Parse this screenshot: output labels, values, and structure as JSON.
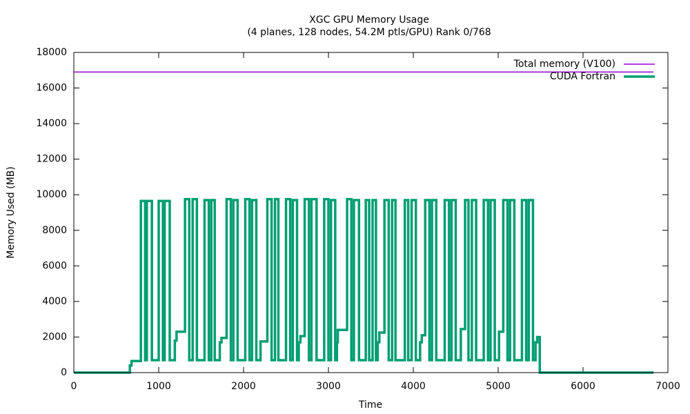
{
  "chart_data": {
    "type": "line",
    "title": "XGC GPU Memory Usage",
    "subtitle": "(4 planes, 128 nodes, 54.2M ptls/GPU) Rank 0/768",
    "x_label": "Time",
    "y_label": "Memory Used (MB)",
    "xlim": [
      0,
      7000
    ],
    "ylim": [
      0,
      18000
    ],
    "xticks": [
      0,
      1000,
      2000,
      3000,
      4000,
      5000,
      6000,
      7000
    ],
    "yticks": [
      0,
      2000,
      4000,
      6000,
      8000,
      10000,
      12000,
      14000,
      16000,
      18000
    ],
    "legend": "top right",
    "series": [
      {
        "name": "Total memory (V100)",
        "color": "#9400d3",
        "x": [
          0,
          6830
        ],
        "values": [
          16900,
          16900
        ]
      },
      {
        "name": "CUDA Fortran",
        "color": "#009e73",
        "x": [
          0,
          660,
          660,
          680,
          680,
          790,
          790,
          840,
          840,
          860,
          860,
          920,
          920,
          1000,
          1000,
          1050,
          1050,
          1070,
          1070,
          1130,
          1130,
          1190,
          1190,
          1210,
          1210,
          1310,
          1310,
          1360,
          1360,
          1400,
          1400,
          1450,
          1450,
          1540,
          1540,
          1590,
          1590,
          1620,
          1620,
          1660,
          1660,
          1720,
          1720,
          1740,
          1740,
          1800,
          1800,
          1850,
          1850,
          1880,
          1880,
          1930,
          1930,
          2020,
          2020,
          2070,
          2070,
          2100,
          2100,
          2150,
          2150,
          2200,
          2200,
          2280,
          2280,
          2330,
          2330,
          2370,
          2370,
          2410,
          2410,
          2500,
          2500,
          2550,
          2550,
          2580,
          2580,
          2630,
          2630,
          2650,
          2650,
          2670,
          2670,
          2720,
          2720,
          2770,
          2770,
          2800,
          2800,
          2860,
          2860,
          2950,
          2950,
          3000,
          3000,
          3030,
          3030,
          3080,
          3080,
          3100,
          3100,
          3110,
          3110,
          3220,
          3220,
          3270,
          3270,
          3300,
          3300,
          3360,
          3360,
          3440,
          3440,
          3480,
          3480,
          3520,
          3520,
          3560,
          3560,
          3580,
          3580,
          3600,
          3600,
          3660,
          3660,
          3710,
          3710,
          3750,
          3750,
          3790,
          3790,
          3900,
          3900,
          3940,
          3940,
          3980,
          3980,
          4030,
          4030,
          4080,
          4080,
          4100,
          4100,
          4140,
          4140,
          4190,
          4190,
          4220,
          4220,
          4270,
          4270,
          4370,
          4370,
          4420,
          4420,
          4450,
          4450,
          4500,
          4500,
          4560,
          4560,
          4610,
          4610,
          4650,
          4650,
          4690,
          4690,
          4740,
          4740,
          4830,
          4830,
          4880,
          4880,
          4910,
          4910,
          4960,
          4960,
          5010,
          5010,
          5060,
          5060,
          5110,
          5110,
          5140,
          5140,
          5190,
          5190,
          5280,
          5280,
          5330,
          5330,
          5360,
          5360,
          5410,
          5410,
          5440,
          5440,
          5460,
          5460,
          5490,
          5490,
          6830
        ],
        "values": [
          0,
          0,
          400,
          400,
          650,
          650,
          9650,
          9650,
          700,
          700,
          9650,
          9650,
          700,
          700,
          9650,
          9650,
          700,
          700,
          9650,
          9650,
          700,
          700,
          1800,
          1800,
          2300,
          2300,
          9750,
          9750,
          700,
          700,
          9750,
          9750,
          700,
          700,
          9700,
          9700,
          700,
          700,
          9700,
          9700,
          700,
          700,
          1700,
          1700,
          1950,
          1950,
          9750,
          9750,
          700,
          700,
          9700,
          9700,
          700,
          700,
          9750,
          9750,
          700,
          700,
          9700,
          9700,
          700,
          700,
          1750,
          1750,
          9750,
          9750,
          700,
          700,
          9750,
          9750,
          700,
          700,
          9750,
          9750,
          700,
          700,
          9700,
          9700,
          700,
          700,
          1700,
          1700,
          2050,
          2050,
          9750,
          9750,
          700,
          700,
          9750,
          9750,
          700,
          700,
          9750,
          9750,
          700,
          700,
          9700,
          9700,
          700,
          700,
          1700,
          1700,
          2400,
          2400,
          9750,
          9750,
          700,
          700,
          9700,
          9700,
          700,
          700,
          9700,
          9700,
          700,
          700,
          9700,
          9700,
          700,
          700,
          1700,
          1700,
          2250,
          2250,
          9700,
          9700,
          700,
          700,
          9700,
          9700,
          700,
          700,
          9700,
          9700,
          700,
          700,
          9700,
          9700,
          700,
          700,
          1700,
          1700,
          2100,
          2100,
          9700,
          9700,
          700,
          700,
          9700,
          9700,
          700,
          700,
          9700,
          9700,
          700,
          700,
          9700,
          9700,
          700,
          700,
          2450,
          2450,
          9700,
          9700,
          700,
          700,
          9700,
          9700,
          700,
          700,
          9700,
          9700,
          700,
          700,
          9700,
          9700,
          700,
          700,
          2300,
          2300,
          9700,
          9700,
          700,
          700,
          9700,
          9700,
          700,
          700,
          9700,
          9700,
          700,
          700,
          9700,
          9700,
          700,
          700,
          1700,
          1700,
          2000,
          2000,
          0,
          0
        ]
      }
    ]
  }
}
